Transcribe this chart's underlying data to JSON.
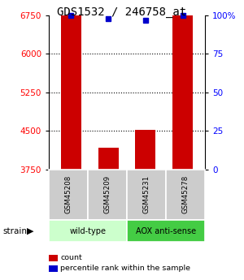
{
  "title": "GDS1532 / 246758_at",
  "samples": [
    "GSM45208",
    "GSM45209",
    "GSM45231",
    "GSM45278"
  ],
  "count_values": [
    6750,
    4175,
    4525,
    6750
  ],
  "percentile_values": [
    100,
    98,
    97,
    100
  ],
  "y_min": 3750,
  "y_max": 6750,
  "pct_min": 0,
  "pct_max": 100,
  "yticks_left": [
    3750,
    4500,
    5250,
    6000,
    6750
  ],
  "yticks_right": [
    0,
    25,
    50,
    75,
    100
  ],
  "hlines": [
    4500,
    5250,
    6000
  ],
  "bar_color": "#cc0000",
  "dot_color": "#0000cc",
  "bar_width": 0.55,
  "groups": [
    {
      "label": "wild-type",
      "samples": [
        0,
        1
      ],
      "color": "#ccffcc"
    },
    {
      "label": "AOX anti-sense",
      "samples": [
        2,
        3
      ],
      "color": "#44cc44"
    }
  ],
  "strain_label": "strain",
  "legend_count_label": "count",
  "legend_pct_label": "percentile rank within the sample",
  "bg_color": "#ffffff",
  "sample_box_color": "#cccccc",
  "title_fontsize": 10,
  "tick_fontsize": 7.5,
  "label_fontsize": 7
}
